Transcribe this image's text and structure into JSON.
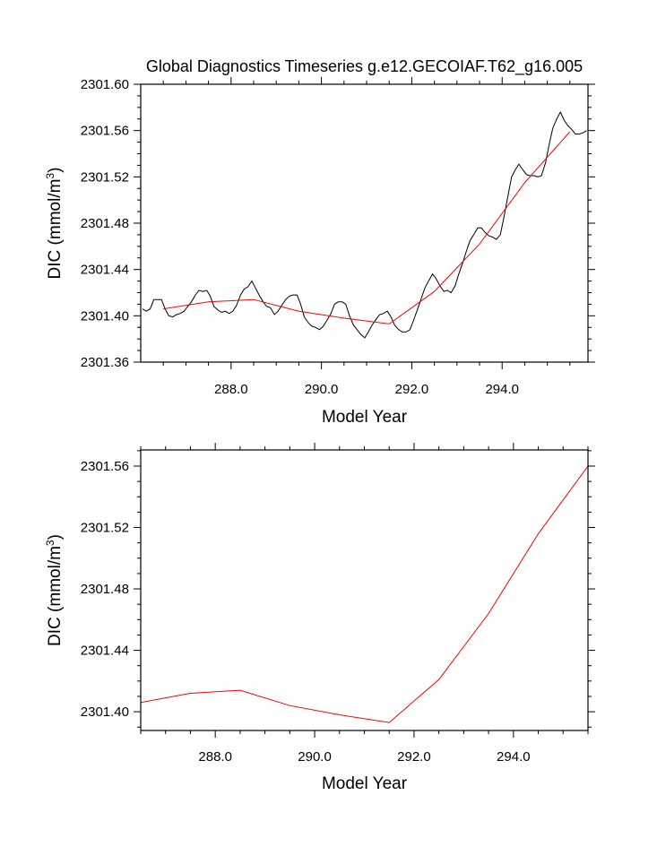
{
  "chart_data": [
    {
      "type": "line",
      "title": "Global Diagnostics Timeseries g.e12.GECOIAF.T62_g16.005",
      "xlabel": "Model Year",
      "ylabel": "DIC (mmol/m",
      "ylabel_sup": "3",
      "ylabel_tail": ")",
      "xlim": [
        286.0,
        295.9
      ],
      "ylim": [
        2301.36,
        2301.6
      ],
      "xticks": [
        288.0,
        290.0,
        292.0,
        294.0
      ],
      "xtick_labels": [
        "288.0",
        "290.0",
        "292.0",
        "294.0"
      ],
      "yticks": [
        2301.36,
        2301.4,
        2301.44,
        2301.48,
        2301.52,
        2301.56,
        2301.6
      ],
      "ytick_labels": [
        "2301.36",
        "2301.40",
        "2301.44",
        "2301.48",
        "2301.52",
        "2301.56",
        "2301.60"
      ],
      "grid": false,
      "series": [
        {
          "color": "#000000",
          "x": [
            286.04,
            286.12,
            286.21,
            286.29,
            286.37,
            286.46,
            286.54,
            286.62,
            286.71,
            286.79,
            286.87,
            286.96,
            287.04,
            287.12,
            287.21,
            287.29,
            287.37,
            287.46,
            287.54,
            287.62,
            287.71,
            287.79,
            287.87,
            287.96,
            288.04,
            288.12,
            288.21,
            288.29,
            288.37,
            288.46,
            288.54,
            288.62,
            288.71,
            288.79,
            288.87,
            288.96,
            289.04,
            289.12,
            289.21,
            289.29,
            289.37,
            289.46,
            289.54,
            289.62,
            289.71,
            289.79,
            289.87,
            289.96,
            290.04,
            290.12,
            290.21,
            290.29,
            290.37,
            290.46,
            290.54,
            290.62,
            290.71,
            290.79,
            290.87,
            290.96,
            291.04,
            291.12,
            291.21,
            291.29,
            291.37,
            291.46,
            291.54,
            291.62,
            291.71,
            291.79,
            291.87,
            291.96,
            292.04,
            292.12,
            292.21,
            292.29,
            292.37,
            292.46,
            292.54,
            292.62,
            292.71,
            292.79,
            292.87,
            292.96,
            293.04,
            293.12,
            293.21,
            293.29,
            293.37,
            293.46,
            293.54,
            293.62,
            293.71,
            293.79,
            293.87,
            293.96,
            294.04,
            294.12,
            294.21,
            294.29,
            294.37,
            294.46,
            294.54,
            294.62,
            294.71,
            294.79,
            294.87,
            294.96,
            295.04,
            295.12,
            295.21,
            295.29,
            295.37,
            295.46,
            295.54,
            295.62,
            295.71,
            295.79,
            295.87
          ],
          "y": [
            2301.406,
            2301.404,
            2301.406,
            2301.414,
            2301.414,
            2301.414,
            2301.406,
            2301.4,
            2301.399,
            2301.401,
            2301.402,
            2301.404,
            2301.408,
            2301.412,
            2301.418,
            2301.422,
            2301.421,
            2301.422,
            2301.417,
            2301.408,
            2301.405,
            2301.403,
            2301.404,
            2301.402,
            2301.404,
            2301.409,
            2301.418,
            2301.423,
            2301.425,
            2301.43,
            2301.424,
            2301.418,
            2301.412,
            2301.408,
            2301.407,
            2301.401,
            2301.404,
            2301.409,
            2301.414,
            2301.417,
            2301.418,
            2301.418,
            2301.41,
            2301.399,
            2301.394,
            2301.391,
            2301.39,
            2301.388,
            2301.391,
            2301.396,
            2301.402,
            2301.41,
            2301.412,
            2301.412,
            2301.41,
            2301.4,
            2301.392,
            2301.388,
            2301.384,
            2301.381,
            2301.386,
            2301.392,
            2301.397,
            2301.401,
            2301.402,
            2301.404,
            2301.399,
            2301.392,
            2301.388,
            2301.386,
            2301.386,
            2301.388,
            2301.396,
            2301.405,
            2301.415,
            2301.424,
            2301.43,
            2301.436,
            2301.432,
            2301.426,
            2301.421,
            2301.422,
            2301.42,
            2301.426,
            2301.436,
            2301.445,
            2301.456,
            2301.465,
            2301.47,
            2301.476,
            2301.476,
            2301.472,
            2301.469,
            2301.468,
            2301.466,
            2301.47,
            2301.485,
            2301.502,
            2301.52,
            2301.526,
            2301.531,
            2301.526,
            2301.522,
            2301.521,
            2301.521,
            2301.52,
            2301.521,
            2301.532,
            2301.548,
            2301.562,
            2301.57,
            2301.576,
            2301.569,
            2301.564,
            2301.561,
            2301.557,
            2301.557,
            2301.558,
            2301.56
          ]
        },
        {
          "color": "#ff0000",
          "x": [
            286.5,
            287.5,
            288.5,
            289.5,
            290.5,
            291.5,
            292.5,
            293.5,
            294.5,
            295.5
          ],
          "y": [
            2301.406,
            2301.412,
            2301.414,
            2301.404,
            2301.398,
            2301.393,
            2301.421,
            2301.462,
            2301.515,
            2301.559
          ]
        }
      ]
    },
    {
      "type": "line",
      "title": "",
      "xlabel": "Model Year",
      "ylabel": "DIC (mmol/m",
      "ylabel_sup": "3",
      "ylabel_tail": ")",
      "xlim": [
        286.5,
        295.5
      ],
      "ylim": [
        2301.3878,
        2301.5705
      ],
      "xticks": [
        288.0,
        290.0,
        292.0,
        294.0
      ],
      "xtick_labels": [
        "288.0",
        "290.0",
        "292.0",
        "294.0"
      ],
      "yticks": [
        2301.4,
        2301.44,
        2301.48,
        2301.52,
        2301.56
      ],
      "ytick_labels": [
        "2301.40",
        "2301.44",
        "2301.48",
        "2301.52",
        "2301.56"
      ],
      "grid": false,
      "series": [
        {
          "color": "#ff0000",
          "x": [
            286.5,
            287.5,
            288.5,
            289.5,
            290.5,
            291.5,
            292.5,
            293.5,
            294.5,
            295.5
          ],
          "y": [
            2301.406,
            2301.412,
            2301.414,
            2301.404,
            2301.398,
            2301.393,
            2301.421,
            2301.464,
            2301.516,
            2301.56
          ]
        }
      ]
    }
  ]
}
